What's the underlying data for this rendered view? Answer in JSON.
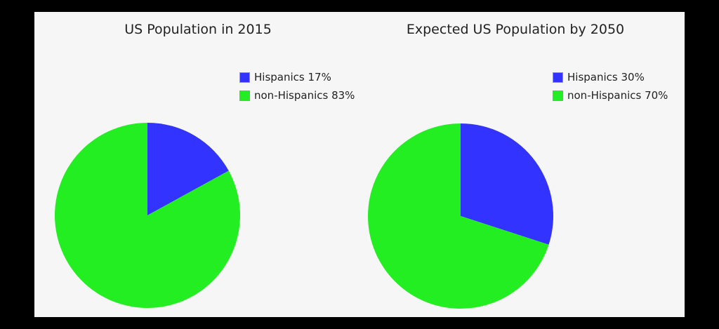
{
  "colors": {
    "hispanic": "#3333ff",
    "non_hispanic": "#22ee22",
    "background": "#f6f6f6"
  },
  "chart_data": [
    {
      "type": "pie",
      "title": "US Population in 2015",
      "categories": [
        "Hispanics",
        "non-Hispanics"
      ],
      "values": [
        17,
        83
      ],
      "legend": [
        "Hispanics 17%",
        "non-Hispanics 83%"
      ],
      "legend_position": "upper-right"
    },
    {
      "type": "pie",
      "title": "Expected US Population by 2050",
      "categories": [
        "Hispanics",
        "non-Hispanics"
      ],
      "values": [
        30,
        70
      ],
      "legend": [
        "Hispanics 30%",
        "non-Hispanics 70%"
      ],
      "legend_position": "upper-right"
    }
  ]
}
